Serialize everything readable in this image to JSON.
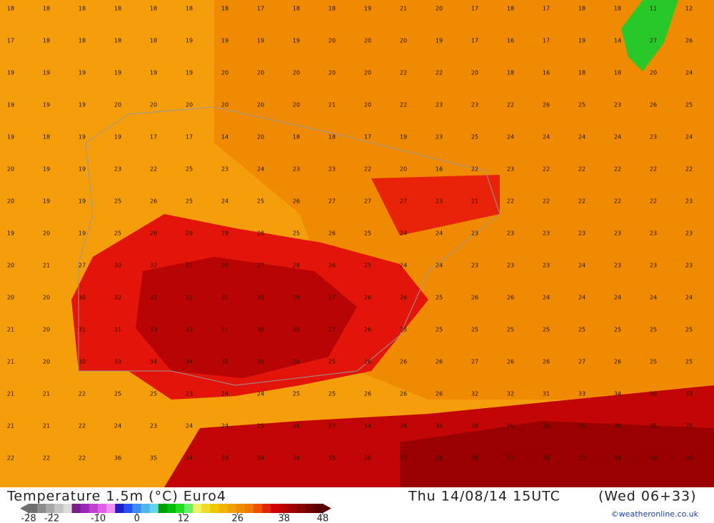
{
  "header": {
    "title": "Temperature 1.5m (°C) Euro4",
    "valid_time": "Thu 14/08/14 15UTC",
    "run": "(Wed 06+33)",
    "credit": "©weatheronline.co.uk"
  },
  "legend": {
    "ticks": [
      -28,
      -22,
      -10,
      0,
      12,
      26,
      38,
      48
    ],
    "range": [
      -28,
      48
    ],
    "colors": [
      "#6e6e6e",
      "#8c8c8c",
      "#a8a8a8",
      "#c4c4c4",
      "#dcdcdc",
      "#7a1e8c",
      "#9a28b4",
      "#c040d0",
      "#e060e8",
      "#f090f0",
      "#1e1ec8",
      "#2850f0",
      "#3c8cf0",
      "#50b4f0",
      "#64d2f0",
      "#00a000",
      "#00be00",
      "#20dc20",
      "#64f064",
      "#f0f064",
      "#f0dc28",
      "#f0c800",
      "#f0b400",
      "#f0a000",
      "#f08c00",
      "#f07800",
      "#f05000",
      "#e02800",
      "#d00000",
      "#b80000",
      "#a00000",
      "#880000",
      "#700000",
      "#580000"
    ]
  },
  "map": {
    "grid": [
      [
        18,
        18,
        18,
        18,
        18,
        18,
        18,
        17,
        18,
        18,
        19,
        21,
        20,
        17,
        18,
        17,
        18,
        18,
        11,
        12
      ],
      [
        17,
        18,
        18,
        18,
        18,
        19,
        19,
        19,
        19,
        20,
        20,
        20,
        19,
        17,
        16,
        17,
        19,
        14,
        27,
        26
      ],
      [
        19,
        19,
        19,
        19,
        19,
        19,
        20,
        20,
        20,
        20,
        20,
        22,
        22,
        20,
        18,
        16,
        18,
        18,
        20,
        24
      ],
      [
        19,
        19,
        19,
        20,
        20,
        20,
        20,
        20,
        20,
        21,
        20,
        22,
        23,
        23,
        22,
        26,
        25,
        23,
        26,
        25
      ],
      [
        19,
        18,
        19,
        19,
        17,
        17,
        14,
        20,
        18,
        18,
        17,
        19,
        23,
        25,
        24,
        24,
        24,
        24,
        23,
        24
      ],
      [
        20,
        19,
        19,
        23,
        22,
        25,
        23,
        24,
        23,
        23,
        22,
        20,
        16,
        22,
        23,
        22,
        22,
        22,
        22,
        22
      ],
      [
        20,
        19,
        19,
        25,
        26,
        25,
        24,
        25,
        26,
        27,
        27,
        27,
        23,
        21,
        22,
        22,
        22,
        22,
        22,
        23
      ],
      [
        19,
        20,
        19,
        25,
        26,
        29,
        29,
        28,
        25,
        26,
        25,
        24,
        24,
        23,
        23,
        23,
        23,
        23,
        23,
        23
      ],
      [
        20,
        21,
        27,
        30,
        32,
        31,
        30,
        27,
        28,
        26,
        25,
        24,
        24,
        23,
        23,
        23,
        24,
        23,
        23,
        23
      ],
      [
        20,
        20,
        30,
        32,
        32,
        32,
        31,
        30,
        29,
        27,
        26,
        26,
        25,
        26,
        26,
        24,
        24,
        24,
        24,
        24
      ],
      [
        21,
        20,
        31,
        31,
        33,
        32,
        31,
        30,
        30,
        27,
        26,
        25,
        25,
        25,
        25,
        25,
        25,
        25,
        25,
        25
      ],
      [
        21,
        20,
        30,
        33,
        34,
        34,
        32,
        30,
        26,
        25,
        26,
        26,
        26,
        27,
        26,
        26,
        27,
        26,
        25,
        25
      ],
      [
        21,
        21,
        22,
        25,
        25,
        23,
        24,
        24,
        25,
        25,
        26,
        26,
        26,
        32,
        32,
        31,
        33,
        34,
        30,
        33
      ],
      [
        21,
        21,
        22,
        24,
        23,
        24,
        24,
        25,
        26,
        27,
        34,
        34,
        34,
        36,
        36,
        36,
        35,
        36,
        35,
        35
      ],
      [
        22,
        22,
        22,
        36,
        35,
        34,
        33,
        34,
        34,
        35,
        36,
        37,
        36,
        36,
        37,
        38,
        37,
        38,
        39,
        40
      ]
    ]
  }
}
